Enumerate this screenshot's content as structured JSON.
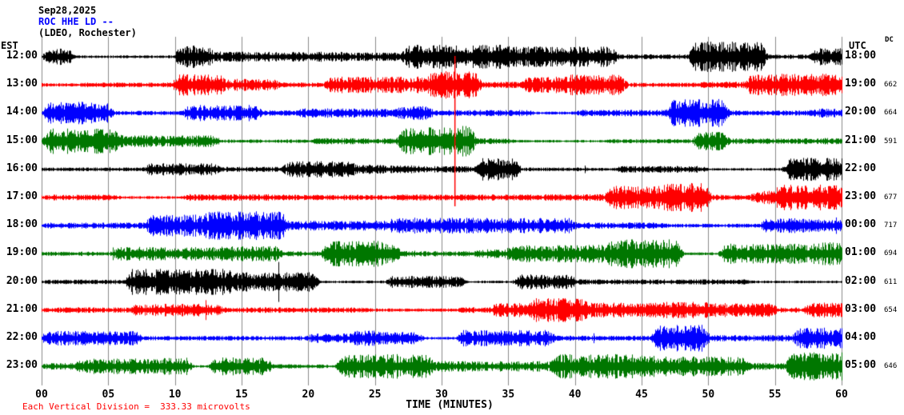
{
  "header": {
    "date": "Sep28,2025",
    "station": "ROC HHE LD --",
    "location": "(LDEO, Rochester)"
  },
  "axes": {
    "left_label": "EST",
    "right_label": "UTC",
    "dc_label": "DC",
    "x_axis_label": "TIME (MINUTES)",
    "x_ticks": [
      "00",
      "05",
      "10",
      "15",
      "20",
      "25",
      "30",
      "35",
      "40",
      "45",
      "50",
      "55",
      "60"
    ]
  },
  "footer": {
    "scale_note": "Each Vertical Division =  333.33 microvolts"
  },
  "chart_data": {
    "type": "line",
    "subtype": "helicorder-webicorder",
    "title": "ROC HHE LD -- (LDEO, Rochester) Sep28,2025",
    "x_axis": {
      "label": "TIME (MINUTES)",
      "range_minutes": [
        0,
        60
      ],
      "tick_interval_minutes": 5
    },
    "vertical_division_microvolts": 333.33,
    "trace_color_cycle": [
      "#000000",
      "#ff0000",
      "#0000ff",
      "#007700"
    ],
    "layout": {
      "grid": "on",
      "grid_color": "#8c8c8c",
      "background": "#ffffff",
      "left_time_column": "EST",
      "right_time_column": "UTC",
      "dc_offset_column": "DC"
    },
    "rows": [
      {
        "est": "12:00",
        "utc": "18:00",
        "dc": "",
        "color": "#000000"
      },
      {
        "est": "13:00",
        "utc": "19:00",
        "dc": "662",
        "color": "#ff0000"
      },
      {
        "est": "14:00",
        "utc": "20:00",
        "dc": "664",
        "color": "#0000ff"
      },
      {
        "est": "15:00",
        "utc": "21:00",
        "dc": "591",
        "color": "#007700"
      },
      {
        "est": "16:00",
        "utc": "22:00",
        "dc": "",
        "color": "#000000"
      },
      {
        "est": "17:00",
        "utc": "23:00",
        "dc": "677",
        "color": "#ff0000"
      },
      {
        "est": "18:00",
        "utc": "00:00",
        "dc": "717",
        "color": "#0000ff"
      },
      {
        "est": "19:00",
        "utc": "01:00",
        "dc": "694",
        "color": "#007700"
      },
      {
        "est": "20:00",
        "utc": "02:00",
        "dc": "611",
        "color": "#000000"
      },
      {
        "est": "21:00",
        "utc": "03:00",
        "dc": "654",
        "color": "#ff0000"
      },
      {
        "est": "22:00",
        "utc": "04:00",
        "dc": "",
        "color": "#0000ff"
      },
      {
        "est": "23:00",
        "utc": "05:00",
        "dc": "646",
        "color": "#007700"
      }
    ],
    "event_marker": {
      "minute": 31,
      "color": "#ff0000",
      "description": "thin vertical red line crossing the upper five traces"
    },
    "waveform_note": "continuous background seismic noise with intermittent high-amplitude bursts; individual sample values not resolvable at this scale"
  }
}
